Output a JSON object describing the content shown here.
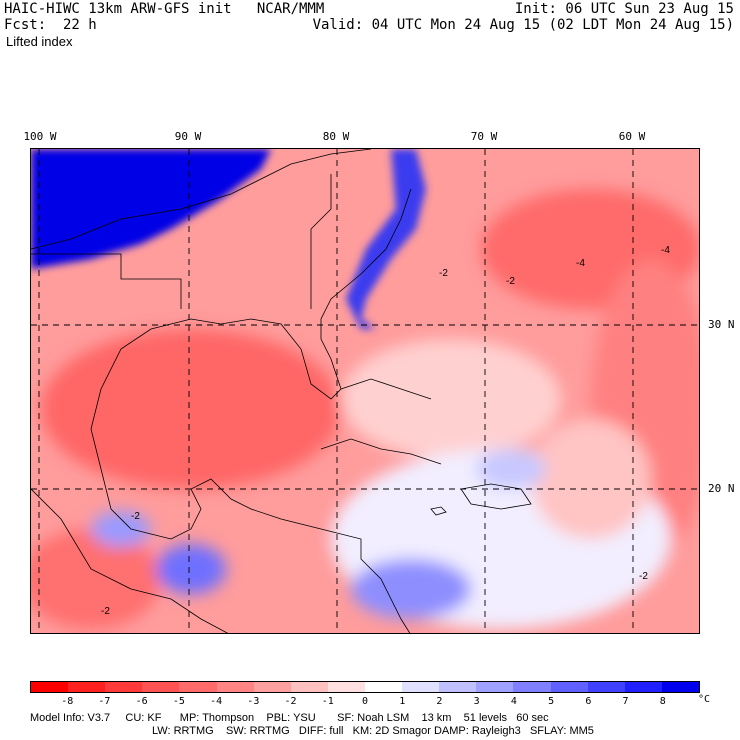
{
  "header": {
    "title": "HAIC-HIWC 13km ARW-GFS init   NCAR/MMM",
    "fcst": "Fcst:  22 h",
    "field": "Lifted index",
    "init": "Init: 06 UTC Sun 23 Aug 15",
    "valid": "Valid: 04 UTC Mon 24 Aug 15 (02 LDT Mon 24 Aug 15)"
  },
  "map": {
    "lon_labels": [
      "100 W",
      "90 W",
      "80 W",
      "70 W",
      "60 W"
    ],
    "lat_labels": [
      "30 N",
      "20 N"
    ],
    "contour_labels": [
      "-2",
      "-2",
      "-4",
      "-4",
      "-2",
      "-2",
      "-2"
    ]
  },
  "colorbar": {
    "labels": [
      "-8",
      "-7",
      "-6",
      "-5",
      "-4",
      "-3",
      "-2",
      "-1",
      "0",
      "1",
      "2",
      "3",
      "4",
      "5",
      "6",
      "7",
      "8"
    ],
    "unit": "°C",
    "colors": [
      "#ff0000",
      "#ff2020",
      "#ff3a3a",
      "#ff5252",
      "#ff6b6b",
      "#ff8585",
      "#ffa0a0",
      "#ffc0c0",
      "#ffe0e0",
      "#ffffff",
      "#e0e0ff",
      "#c0c0ff",
      "#a0a0ff",
      "#8080ff",
      "#6060ff",
      "#4040ff",
      "#2020ff",
      "#0000ee"
    ]
  },
  "footer": {
    "line1": "Model Info: V3.7     CU: KF      MP: Thompson    PBL: YSU       SF: Noah LSM    13 km    51 levels   60 sec",
    "line2": "LW: RRTMG    SW: RRTMG   DIFF: full   KM: 2D Smagor DAMP: Rayleigh3   SFLAY: MM5"
  }
}
